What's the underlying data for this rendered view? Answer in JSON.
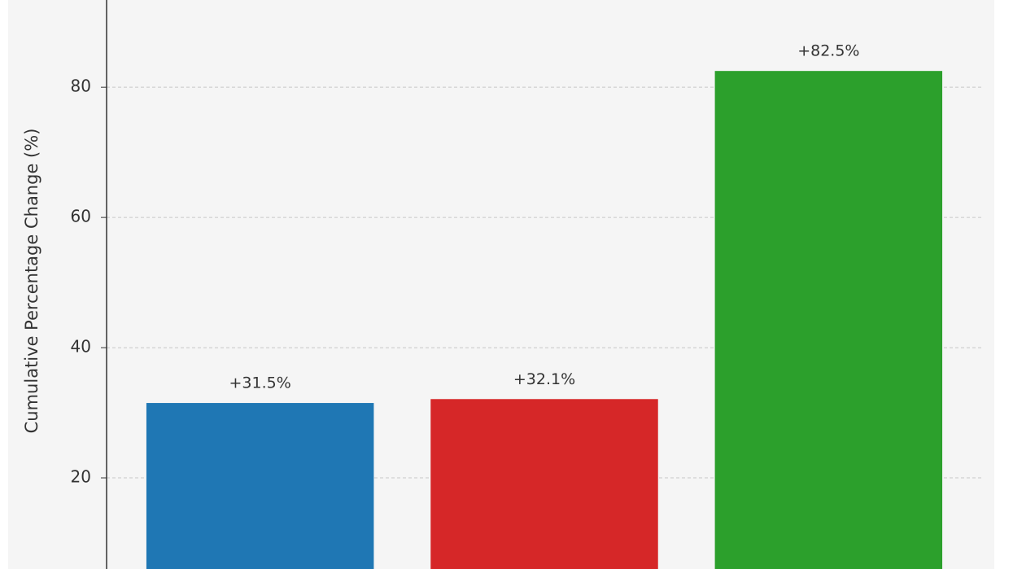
{
  "chart_data": {
    "type": "bar",
    "y_label": "Cumulative Percentage Change (%)",
    "categories": [
      null,
      null,
      null
    ],
    "values": [
      31.5,
      32.1,
      82.5
    ],
    "value_labels": [
      "+31.5%",
      "+32.1%",
      "+82.5%"
    ],
    "colors": [
      "#1f77b4",
      "#d62728",
      "#2ca02c"
    ],
    "ylim": [
      6,
      93.4
    ],
    "yticks": [
      20,
      40,
      60,
      80
    ],
    "grid": true
  }
}
